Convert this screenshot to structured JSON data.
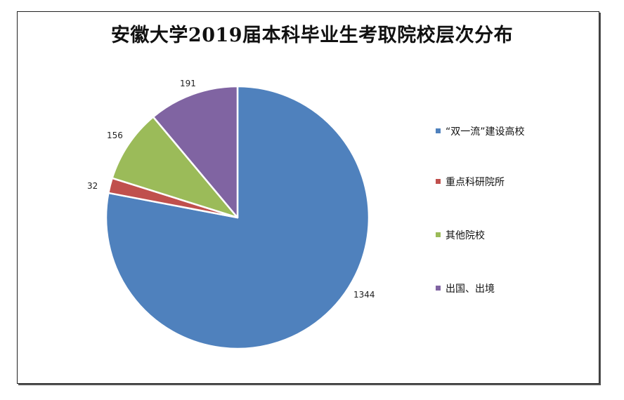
{
  "chart_data": {
    "type": "pie",
    "title": "安徽大学2019届本科毕业生考取院校层次分布",
    "categories": [
      "“双一流”建设高校",
      "重点科研院所",
      "其他院校",
      "出国、出境"
    ],
    "values": [
      1344,
      32,
      156,
      191
    ],
    "colors": [
      "#4f81bd",
      "#c0504d",
      "#9bbb59",
      "#8064a2"
    ],
    "data_labels": [
      "1344",
      "32",
      "156",
      "191"
    ],
    "legend_position": "right",
    "start_angle": "12 o'clock, clockwise"
  },
  "title": "安徽大学2019届本科毕业生考取院校层次分布",
  "legend": [
    {
      "label": "“双一流”建设高校",
      "color": "#4f81bd"
    },
    {
      "label": "重点科研院所",
      "color": "#c0504d"
    },
    {
      "label": "其他院校",
      "color": "#9bbb59"
    },
    {
      "label": "出国、出境",
      "color": "#8064a2"
    }
  ],
  "labels": {
    "l0": "1344",
    "l1": "32",
    "l2": "156",
    "l3": "191"
  }
}
